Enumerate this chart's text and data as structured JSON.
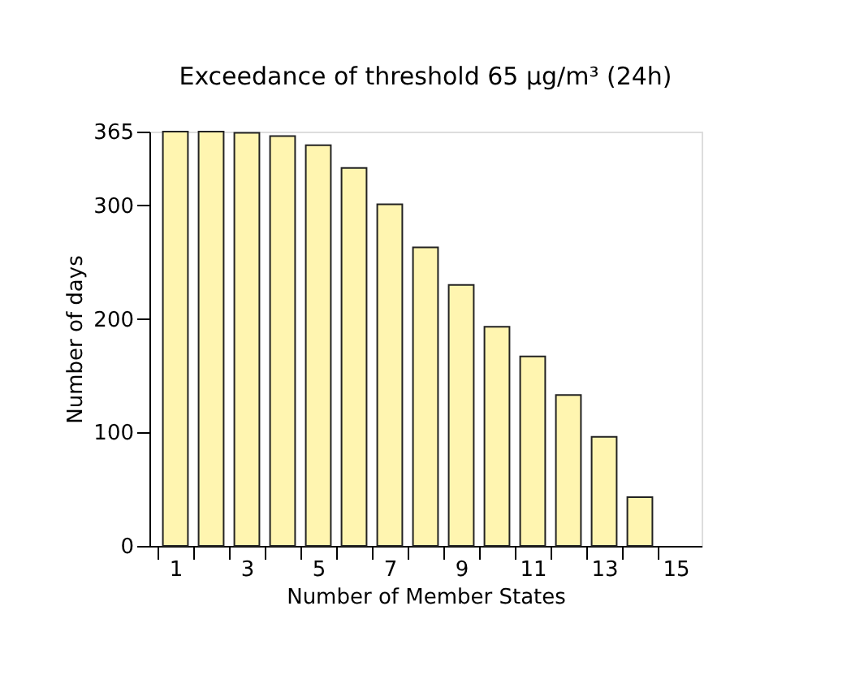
{
  "chart_data": {
    "type": "bar",
    "title": "Exceedance of threshold 65 µg/m³ (24h)",
    "xlabel": "Number of Member States",
    "ylabel": "Number of days",
    "x": [
      1,
      2,
      3,
      4,
      5,
      6,
      7,
      8,
      9,
      10,
      11,
      12,
      13,
      14
    ],
    "values": [
      365,
      365,
      364,
      361,
      353,
      333,
      301,
      263,
      230,
      193,
      167,
      133,
      96,
      43
    ],
    "xlim": [
      0.5,
      15.5
    ],
    "xticks": [
      {
        "value": 0.5,
        "label": null
      },
      1,
      {
        "value": 1.5,
        "label": null
      },
      {
        "value": 2.5,
        "label": null
      },
      3,
      {
        "value": 3.5,
        "label": null
      },
      {
        "value": 4.5,
        "label": null
      },
      5,
      {
        "value": 5.5,
        "label": null
      },
      {
        "value": 6.5,
        "label": null
      },
      7,
      {
        "value": 7.5,
        "label": null
      },
      {
        "value": 8.5,
        "label": null
      },
      9,
      {
        "value": 9.5,
        "label": null
      },
      {
        "value": 10.5,
        "label": null
      },
      11,
      {
        "value": 11.5,
        "label": null
      },
      {
        "value": 12.5,
        "label": null
      },
      13,
      {
        "value": 13.5,
        "label": null
      },
      {
        "value": 14.5,
        "label": null
      },
      15
    ],
    "color": "#fff5b0",
    "ylim": [
      0,
      365
    ],
    "yticks": [
      0,
      100,
      200,
      300,
      365
    ],
    "grid": false
  }
}
